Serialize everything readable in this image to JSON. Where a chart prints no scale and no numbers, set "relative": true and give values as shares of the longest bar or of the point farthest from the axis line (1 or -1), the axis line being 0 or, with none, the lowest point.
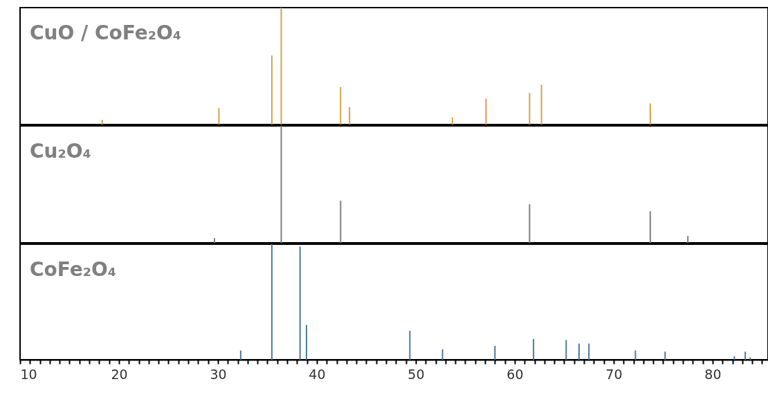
{
  "chart_data": [
    {
      "type": "bar",
      "title": "CuO / CoFe₂O₄",
      "relative": true,
      "tick_labels": false,
      "xlim": [
        10,
        85.6
      ],
      "x": [
        18.3,
        30.1,
        35.45,
        36.4,
        42.4,
        43.3,
        53.7,
        57.1,
        61.5,
        62.7,
        73.7
      ],
      "series": [
        {
          "color": "#d4a045",
          "values": [
            0.04,
            0.14,
            0.59,
            1,
            0.32,
            0.15,
            0.06,
            0.22,
            0.27,
            0.34,
            0.18
          ]
        }
      ]
    },
    {
      "type": "bar",
      "title": "Cu₂O₄",
      "relative": true,
      "tick_labels": false,
      "xlim": [
        10,
        85.6
      ],
      "x": [
        29.65,
        36.4,
        42.4,
        61.5,
        73.7,
        77.5
      ],
      "series": [
        {
          "color": "#7f7f7f",
          "values": [
            0.04,
            1,
            0.36,
            0.33,
            0.27,
            0.06
          ]
        }
      ]
    },
    {
      "type": "bar",
      "title": "CoFe₂O₄",
      "relative": true,
      "tick_labels": "x",
      "xlim": [
        10,
        85.6
      ],
      "xticks": [
        10,
        {
          "value": 11,
          "label": null
        },
        {
          "value": 12,
          "label": null
        },
        {
          "value": 13,
          "label": null
        },
        {
          "value": 14,
          "label": null
        },
        {
          "value": 15,
          "label": null
        },
        {
          "value": 16,
          "label": null
        },
        {
          "value": 17,
          "label": null
        },
        {
          "value": 18,
          "label": null
        },
        {
          "value": 19,
          "label": null
        },
        20,
        {
          "value": 21,
          "label": null
        },
        {
          "value": 22,
          "label": null
        },
        {
          "value": 23,
          "label": null
        },
        {
          "value": 24,
          "label": null
        },
        {
          "value": 25,
          "label": null
        },
        {
          "value": 26,
          "label": null
        },
        {
          "value": 27,
          "label": null
        },
        {
          "value": 28,
          "label": null
        },
        {
          "value": 29,
          "label": null
        },
        30,
        {
          "value": 31,
          "label": null
        },
        {
          "value": 32,
          "label": null
        },
        {
          "value": 33,
          "label": null
        },
        {
          "value": 34,
          "label": null
        },
        {
          "value": 35,
          "label": null
        },
        {
          "value": 36,
          "label": null
        },
        {
          "value": 37,
          "label": null
        },
        {
          "value": 38,
          "label": null
        },
        {
          "value": 39,
          "label": null
        },
        40,
        {
          "value": 41,
          "label": null
        },
        {
          "value": 42,
          "label": null
        },
        {
          "value": 43,
          "label": null
        },
        {
          "value": 44,
          "label": null
        },
        {
          "value": 45,
          "label": null
        },
        {
          "value": 46,
          "label": null
        },
        {
          "value": 47,
          "label": null
        },
        {
          "value": 48,
          "label": null
        },
        {
          "value": 49,
          "label": null
        },
        50,
        {
          "value": 51,
          "label": null
        },
        {
          "value": 52,
          "label": null
        },
        {
          "value": 53,
          "label": null
        },
        {
          "value": 54,
          "label": null
        },
        {
          "value": 55,
          "label": null
        },
        {
          "value": 56,
          "label": null
        },
        {
          "value": 57,
          "label": null
        },
        {
          "value": 58,
          "label": null
        },
        {
          "value": 59,
          "label": null
        },
        60,
        {
          "value": 61,
          "label": null
        },
        {
          "value": 62,
          "label": null
        },
        {
          "value": 63,
          "label": null
        },
        {
          "value": 64,
          "label": null
        },
        {
          "value": 65,
          "label": null
        },
        {
          "value": 66,
          "label": null
        },
        {
          "value": 67,
          "label": null
        },
        {
          "value": 68,
          "label": null
        },
        {
          "value": 69,
          "label": null
        },
        70,
        {
          "value": 71,
          "label": null
        },
        {
          "value": 72,
          "label": null
        },
        {
          "value": 73,
          "label": null
        },
        {
          "value": 74,
          "label": null
        },
        {
          "value": 75,
          "label": null
        },
        {
          "value": 76,
          "label": null
        },
        {
          "value": 77,
          "label": null
        },
        {
          "value": 78,
          "label": null
        },
        {
          "value": 79,
          "label": null
        },
        80,
        {
          "value": 81,
          "label": null
        },
        {
          "value": 82,
          "label": null
        },
        {
          "value": 83,
          "label": null
        },
        {
          "value": 84,
          "label": null
        },
        {
          "value": 85,
          "label": null
        }
      ],
      "x": [
        32.3,
        35.45,
        38.3,
        38.95,
        49.4,
        52.7,
        58.0,
        61.9,
        65.2,
        66.5,
        67.5,
        72.2,
        75.2,
        82.2,
        83.3,
        83.8
      ],
      "series": [
        {
          "color": "#4a7a9c",
          "values": [
            0.08,
            1,
            0.98,
            0.3,
            0.25,
            0.09,
            0.12,
            0.18,
            0.17,
            0.14,
            0.14,
            0.08,
            0.07,
            0.03,
            0.07,
            0.02
          ]
        }
      ]
    }
  ]
}
